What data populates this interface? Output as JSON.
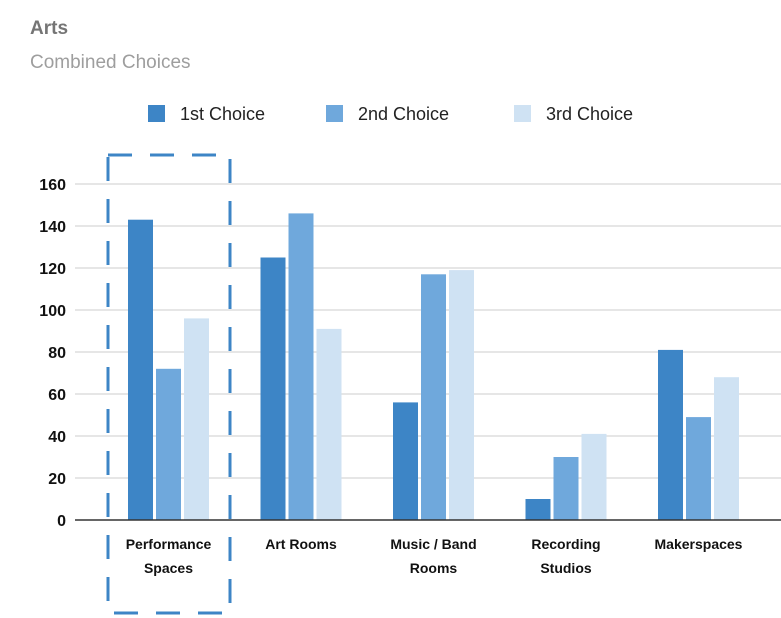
{
  "chart_data": {
    "type": "bar",
    "title": "Arts",
    "subtitle": "Combined Choices",
    "categories": [
      [
        "Performance",
        "Spaces"
      ],
      [
        "Art Rooms"
      ],
      [
        "Music / Band",
        "Rooms"
      ],
      [
        "Recording",
        "Studios"
      ],
      [
        "Makerspaces"
      ]
    ],
    "series": [
      {
        "name": "1st Choice",
        "color": "#3d85c6",
        "values": [
          143,
          125,
          56,
          10,
          81
        ]
      },
      {
        "name": "2nd Choice",
        "color": "#6fa8dc",
        "values": [
          72,
          146,
          117,
          30,
          49
        ]
      },
      {
        "name": "3rd Choice",
        "color": "#cfe2f3",
        "values": [
          96,
          91,
          119,
          41,
          68
        ]
      }
    ],
    "ylim": [
      0,
      160
    ],
    "yticks": [
      0,
      20,
      40,
      60,
      80,
      100,
      120,
      140,
      160
    ],
    "grid": true,
    "legend_position": "top",
    "highlight": {
      "category_index": 0,
      "style": "dashed-box",
      "color": "#3d85c6"
    }
  }
}
